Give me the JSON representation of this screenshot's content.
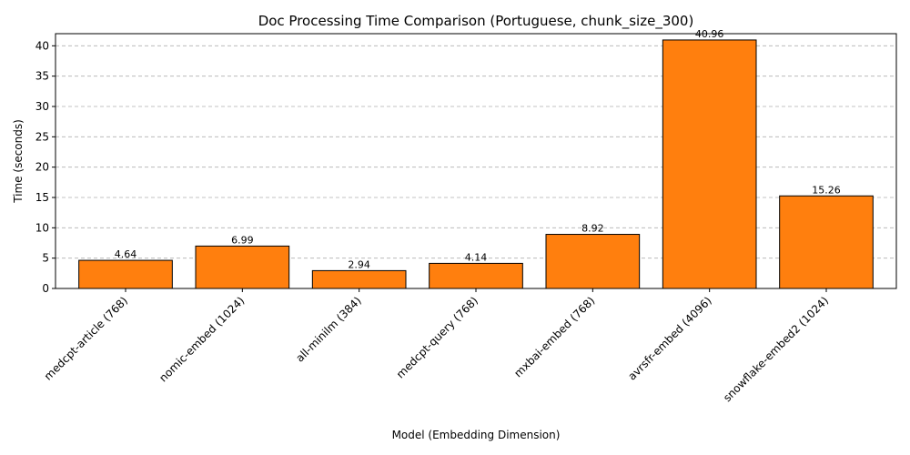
{
  "chart_data": {
    "type": "bar",
    "title": "Doc Processing Time Comparison (Portuguese, chunk_size_300)",
    "xlabel": "Model (Embedding Dimension)",
    "ylabel": "Time (seconds)",
    "categories": [
      "medcpt-article (768)",
      "nomic-embed (1024)",
      "all-minilm (384)",
      "medcpt-query (768)",
      "mxbai-embed (768)",
      "avrsfr-embed (4096)",
      "snowflake-embed2 (1024)"
    ],
    "values": [
      4.64,
      6.99,
      2.94,
      4.14,
      8.92,
      40.96,
      15.26
    ],
    "value_labels": [
      "4.64",
      "6.99",
      "2.94",
      "4.14",
      "8.92",
      "40.96",
      "15.26"
    ],
    "ylim": [
      0,
      42
    ],
    "yticks": [
      0,
      5,
      10,
      15,
      20,
      25,
      30,
      35,
      40
    ],
    "grid": "y-dashed",
    "bar_color": "#ff7f0e",
    "bar_edge_color": "#000000"
  }
}
